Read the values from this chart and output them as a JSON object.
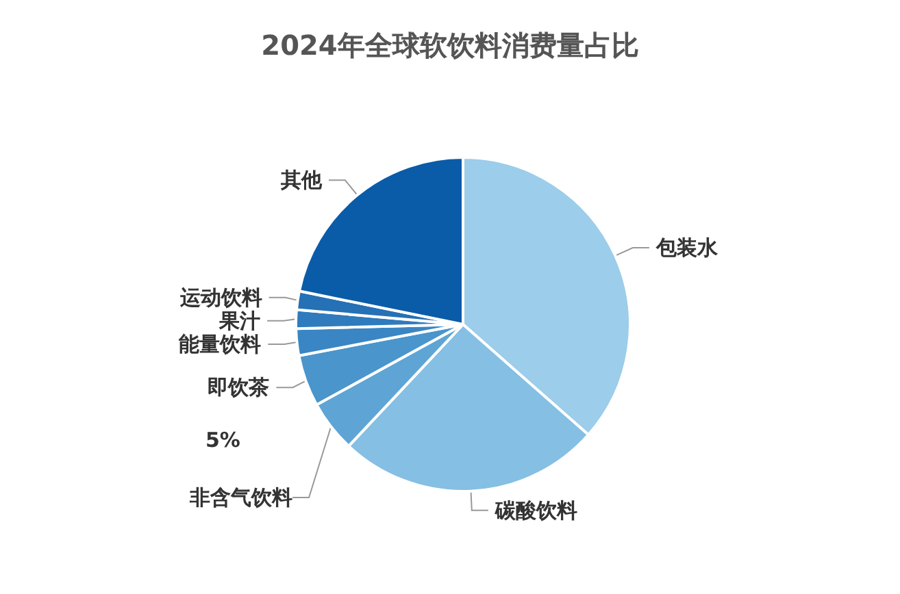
{
  "chart_data": {
    "type": "pie",
    "title": "2024年全球软饮料消费量占比",
    "categories": [
      "包装水",
      "碳酸饮料",
      "非含气饮料",
      "即饮茶",
      "能量饮料",
      "果汁",
      "运动饮料",
      "其他"
    ],
    "values": [
      36.5,
      25.5,
      5,
      5,
      2.6,
      1.8,
      1.8,
      21.8
    ],
    "colors": [
      "#9ccdea",
      "#85bfe3",
      "#5ea5d6",
      "#4a95cc",
      "#3a86c4",
      "#2f7bbd",
      "#2670b5",
      "#0a5ca8"
    ],
    "annotations": [
      "5%"
    ],
    "legend": false
  }
}
